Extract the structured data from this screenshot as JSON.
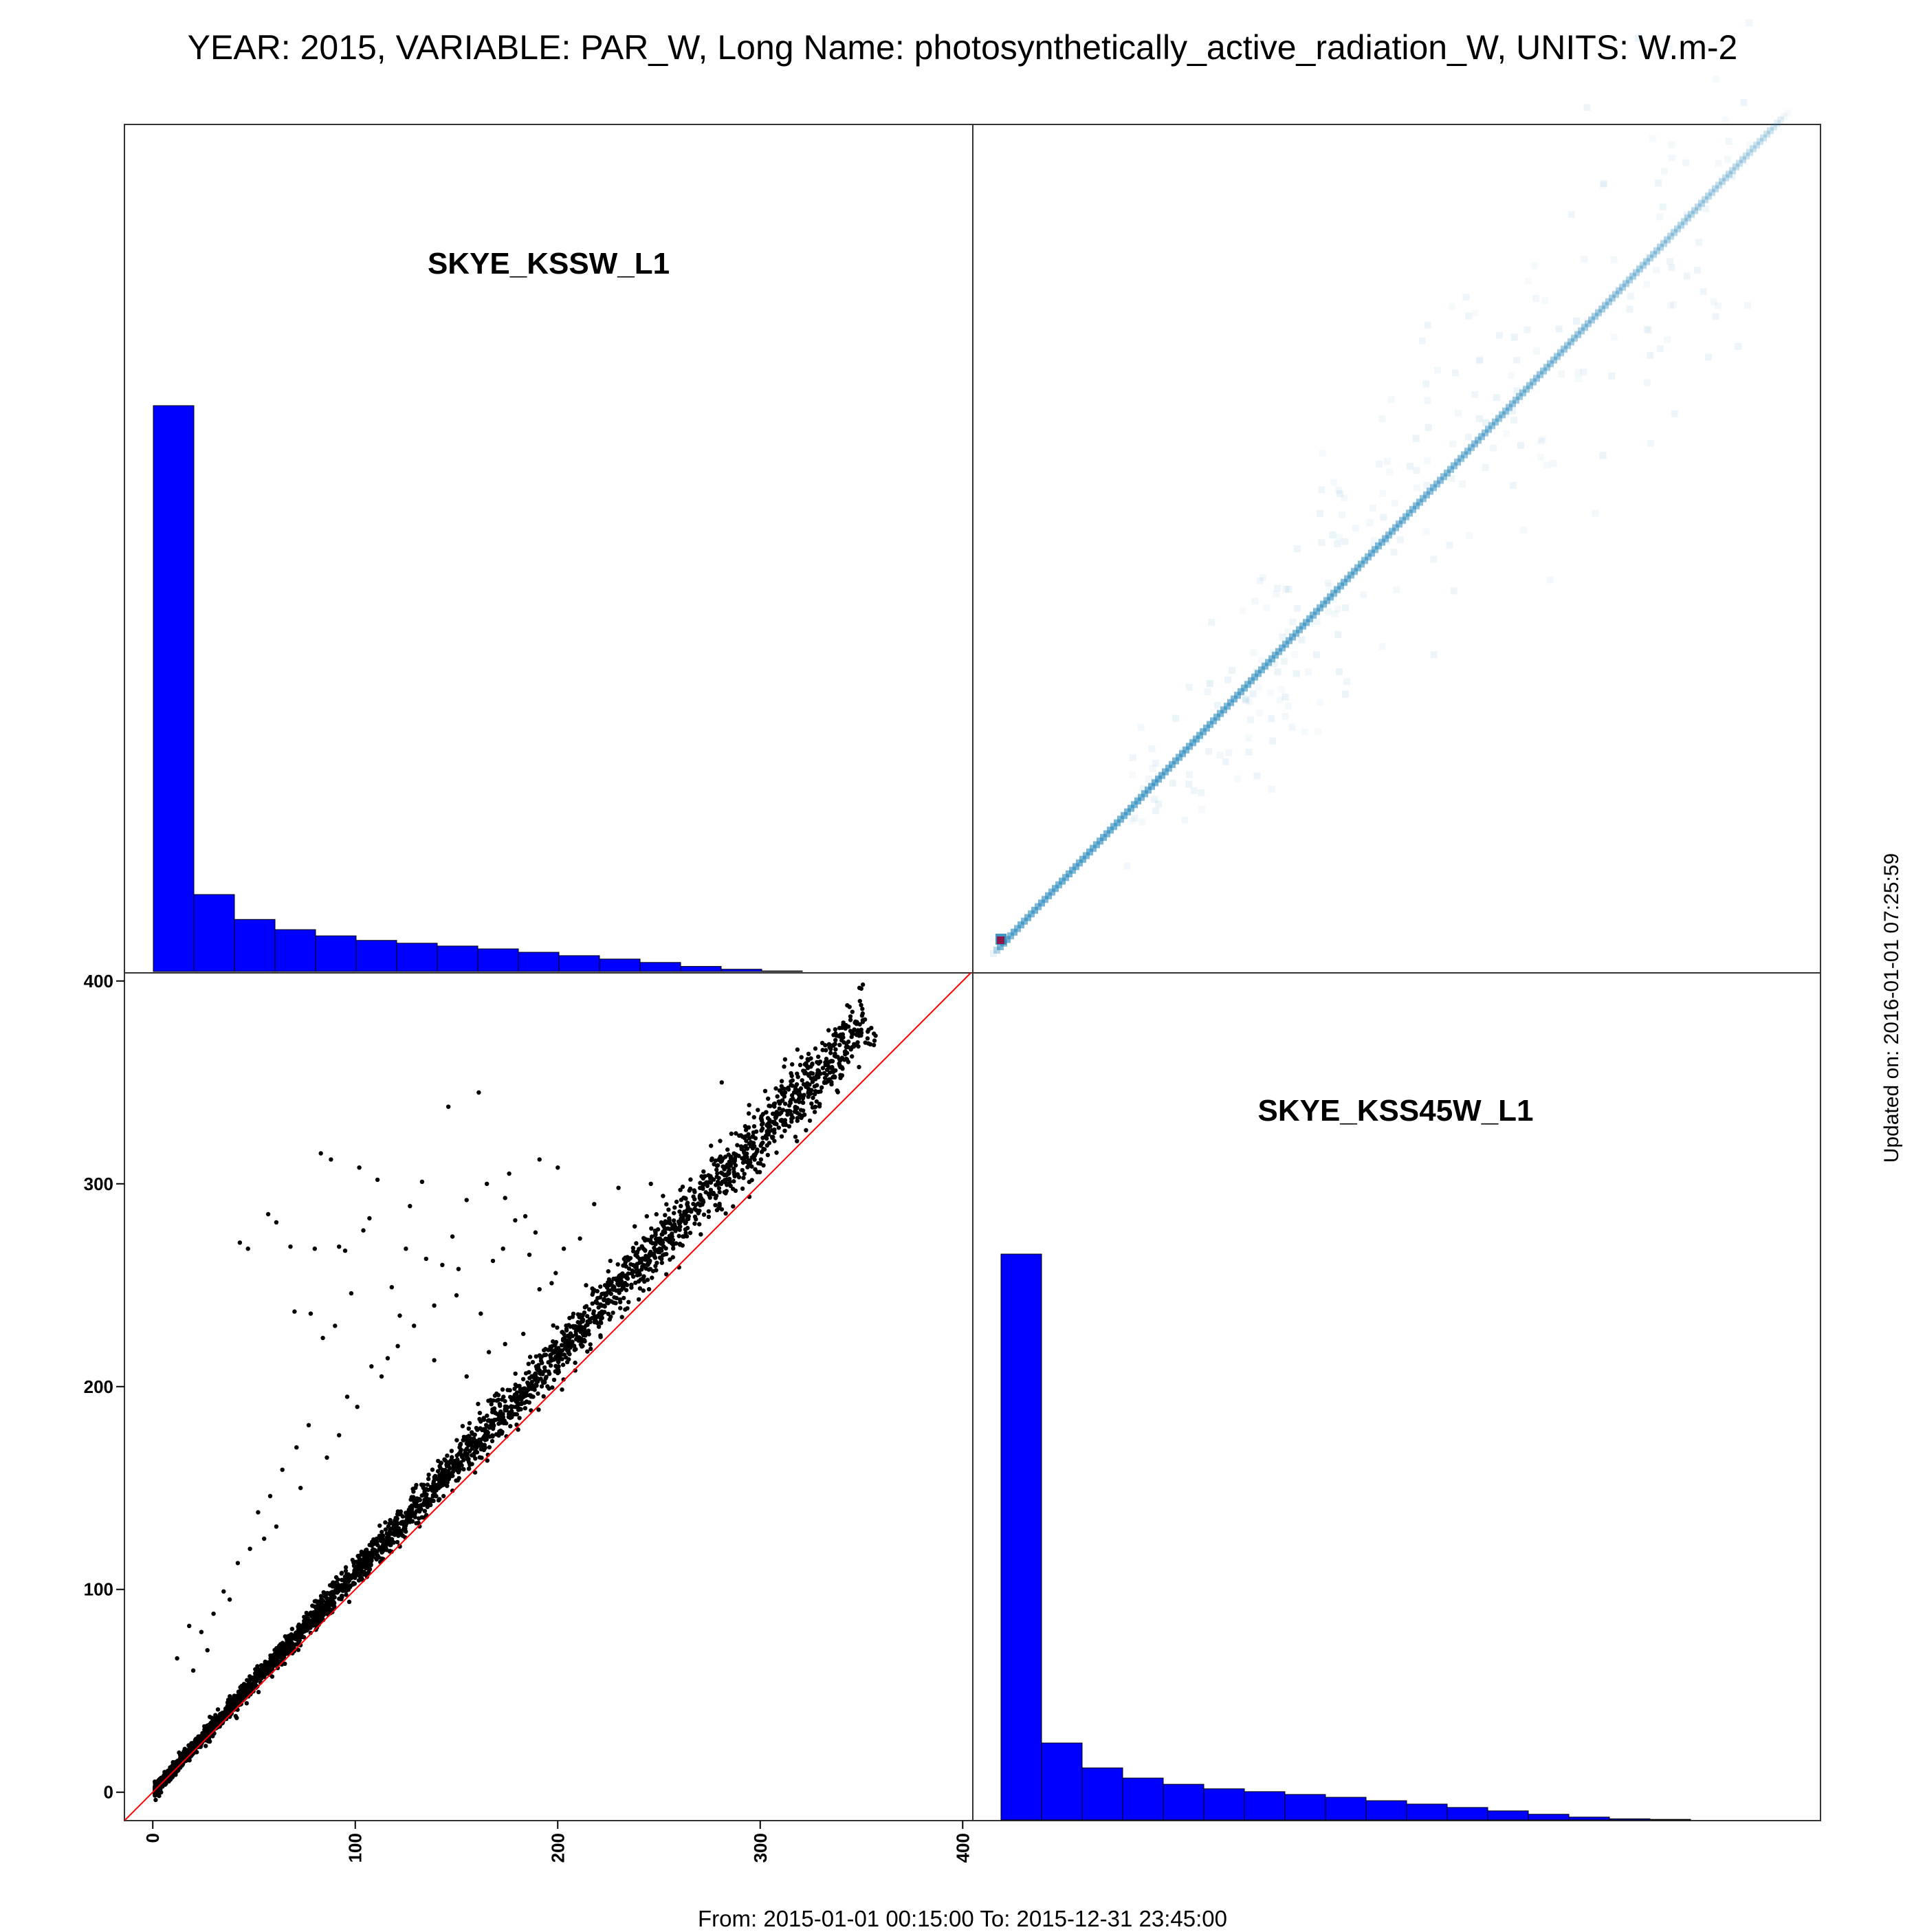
{
  "title": "YEAR: 2015, VARIABLE: PAR_W, Long Name: photosynthetically_active_radiation_W, UNITS: W.m-2",
  "footer": "From: 2015-01-01 00:15:00 To: 2015-12-31 23:45:00",
  "updated": "Updated on: 2016-01-01 07:25:59",
  "colors": {
    "histogram_fill": "#0000ff",
    "histogram_edge": "#000000",
    "scatter_points": "#000000",
    "identity_line": "#ff0000",
    "density_base": "#2b8cbe",
    "density_peak": "#8b1a4a"
  },
  "chart_data": [
    {
      "type": "bar",
      "panel": "top-left",
      "title": "SKYE_KSSW_L1",
      "bin_width": 20,
      "bins_start": 0,
      "values": [
        1.0,
        0.136,
        0.092,
        0.074,
        0.063,
        0.055,
        0.05,
        0.045,
        0.04,
        0.034,
        0.028,
        0.022,
        0.016,
        0.009,
        0.004,
        0.001,
        0.0005,
        0.0002
      ]
    },
    {
      "type": "heatmap",
      "panel": "top-right",
      "description_relation": "identity",
      "x_range": [
        0,
        375
      ],
      "y_range": [
        0,
        375
      ]
    },
    {
      "type": "scatter",
      "panel": "bottom-left",
      "xlim": [
        -14,
        405
      ],
      "ylim": [
        -14,
        404
      ],
      "xticks": [
        0,
        100,
        200,
        300,
        400
      ],
      "yticks": [
        0,
        100,
        200,
        300,
        400
      ],
      "reference_line": "y = x",
      "outliers": [
        [
          43,
          271
        ],
        [
          47,
          268
        ],
        [
          57,
          285
        ],
        [
          68,
          269
        ],
        [
          80,
          268
        ],
        [
          83,
          315
        ],
        [
          88,
          312
        ],
        [
          92,
          269
        ],
        [
          102,
          308
        ],
        [
          111,
          302
        ],
        [
          95,
          267
        ],
        [
          104,
          277
        ],
        [
          107,
          283
        ],
        [
          127,
          289
        ],
        [
          133,
          301
        ],
        [
          146,
          338
        ],
        [
          161,
          345
        ],
        [
          155,
          292
        ],
        [
          173,
          268
        ],
        [
          174,
          293
        ],
        [
          184,
          284
        ],
        [
          189,
          276
        ],
        [
          203,
          268
        ],
        [
          211,
          273
        ],
        [
          191,
          248
        ],
        [
          197,
          251
        ],
        [
          208,
          229
        ],
        [
          221,
          244
        ],
        [
          231,
          255
        ],
        [
          238,
          279
        ],
        [
          244,
          284
        ],
        [
          253,
          276
        ],
        [
          191,
          312
        ],
        [
          200,
          308
        ],
        [
          281,
          350
        ],
        [
          135,
          263
        ],
        [
          143,
          260
        ],
        [
          150,
          245
        ],
        [
          162,
          236
        ],
        [
          174,
          221
        ],
        [
          118,
          249
        ],
        [
          122,
          235
        ],
        [
          129,
          230
        ],
        [
          139,
          213
        ],
        [
          155,
          205
        ],
        [
          166,
          217
        ],
        [
          183,
          226
        ],
        [
          113,
          205
        ],
        [
          101,
          190
        ],
        [
          92,
          176
        ],
        [
          86,
          165
        ],
        [
          77,
          181
        ],
        [
          71,
          170
        ],
        [
          64,
          159
        ],
        [
          58,
          146
        ],
        [
          52,
          138
        ],
        [
          61,
          131
        ],
        [
          48,
          120
        ],
        [
          42,
          113
        ],
        [
          35,
          99
        ],
        [
          30,
          88
        ],
        [
          24,
          79
        ],
        [
          18,
          82
        ],
        [
          12,
          66
        ],
        [
          20,
          60
        ],
        [
          27,
          70
        ],
        [
          38,
          95
        ],
        [
          55,
          125
        ],
        [
          73,
          150
        ],
        [
          96,
          195
        ],
        [
          108,
          210
        ],
        [
          121,
          220
        ],
        [
          139,
          240
        ],
        [
          151,
          258
        ],
        [
          168,
          262
        ],
        [
          179,
          282
        ],
        [
          186,
          265
        ],
        [
          199,
          256
        ],
        [
          214,
          250
        ],
        [
          226,
          262
        ],
        [
          239,
          258
        ],
        [
          61,
          281
        ],
        [
          70,
          237
        ],
        [
          78,
          236
        ],
        [
          84,
          224
        ],
        [
          90,
          230
        ],
        [
          98,
          246
        ],
        [
          116,
          214
        ],
        [
          125,
          268
        ],
        [
          148,
          274
        ],
        [
          165,
          300
        ],
        [
          176,
          305
        ],
        [
          218,
          290
        ],
        [
          230,
          298
        ],
        [
          246,
          300
        ],
        [
          252,
          294
        ]
      ]
    },
    {
      "type": "bar",
      "panel": "bottom-right",
      "title": "SKYE_KSS45W_L1",
      "bin_width": 20,
      "bins_start": 0,
      "values": [
        1.0,
        0.136,
        0.092,
        0.074,
        0.063,
        0.055,
        0.05,
        0.045,
        0.04,
        0.034,
        0.028,
        0.022,
        0.016,
        0.01,
        0.005,
        0.002,
        0.001,
        0.0003
      ]
    }
  ]
}
